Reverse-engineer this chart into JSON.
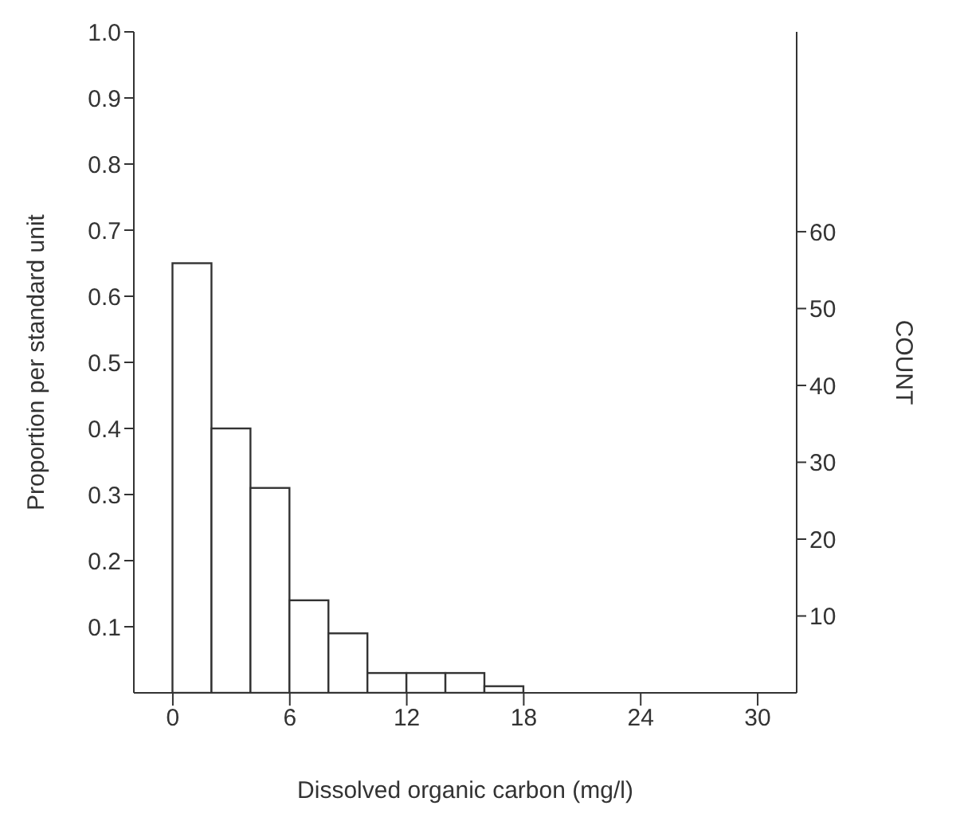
{
  "chart_data": {
    "type": "histogram",
    "xlabel": "Dissolved organic carbon (mg/l)",
    "ylabel": "Proportion per standard unit",
    "y2label": "COUNT",
    "bins": [
      0,
      2,
      4,
      6,
      8,
      10,
      12,
      14,
      16,
      18
    ],
    "values": [
      0.65,
      0.4,
      0.31,
      0.14,
      0.09,
      0.03,
      0.03,
      0.03,
      0.01
    ],
    "color": "#ffffff",
    "xlim": [
      -2,
      32
    ],
    "xticks": [
      0,
      6,
      12,
      18,
      24,
      30
    ],
    "ylim": [
      0,
      1
    ],
    "yticks": [
      0.1,
      0.2,
      0.3,
      0.4,
      0.5,
      0.6,
      0.7,
      0.8,
      0.9,
      {
        "value": 1,
        "label": "1.0"
      }
    ],
    "y2lim": [
      0,
      86
    ],
    "y2ticks": [
      10,
      20,
      30,
      40,
      50,
      60
    ],
    "grid": false,
    "legend": false
  }
}
